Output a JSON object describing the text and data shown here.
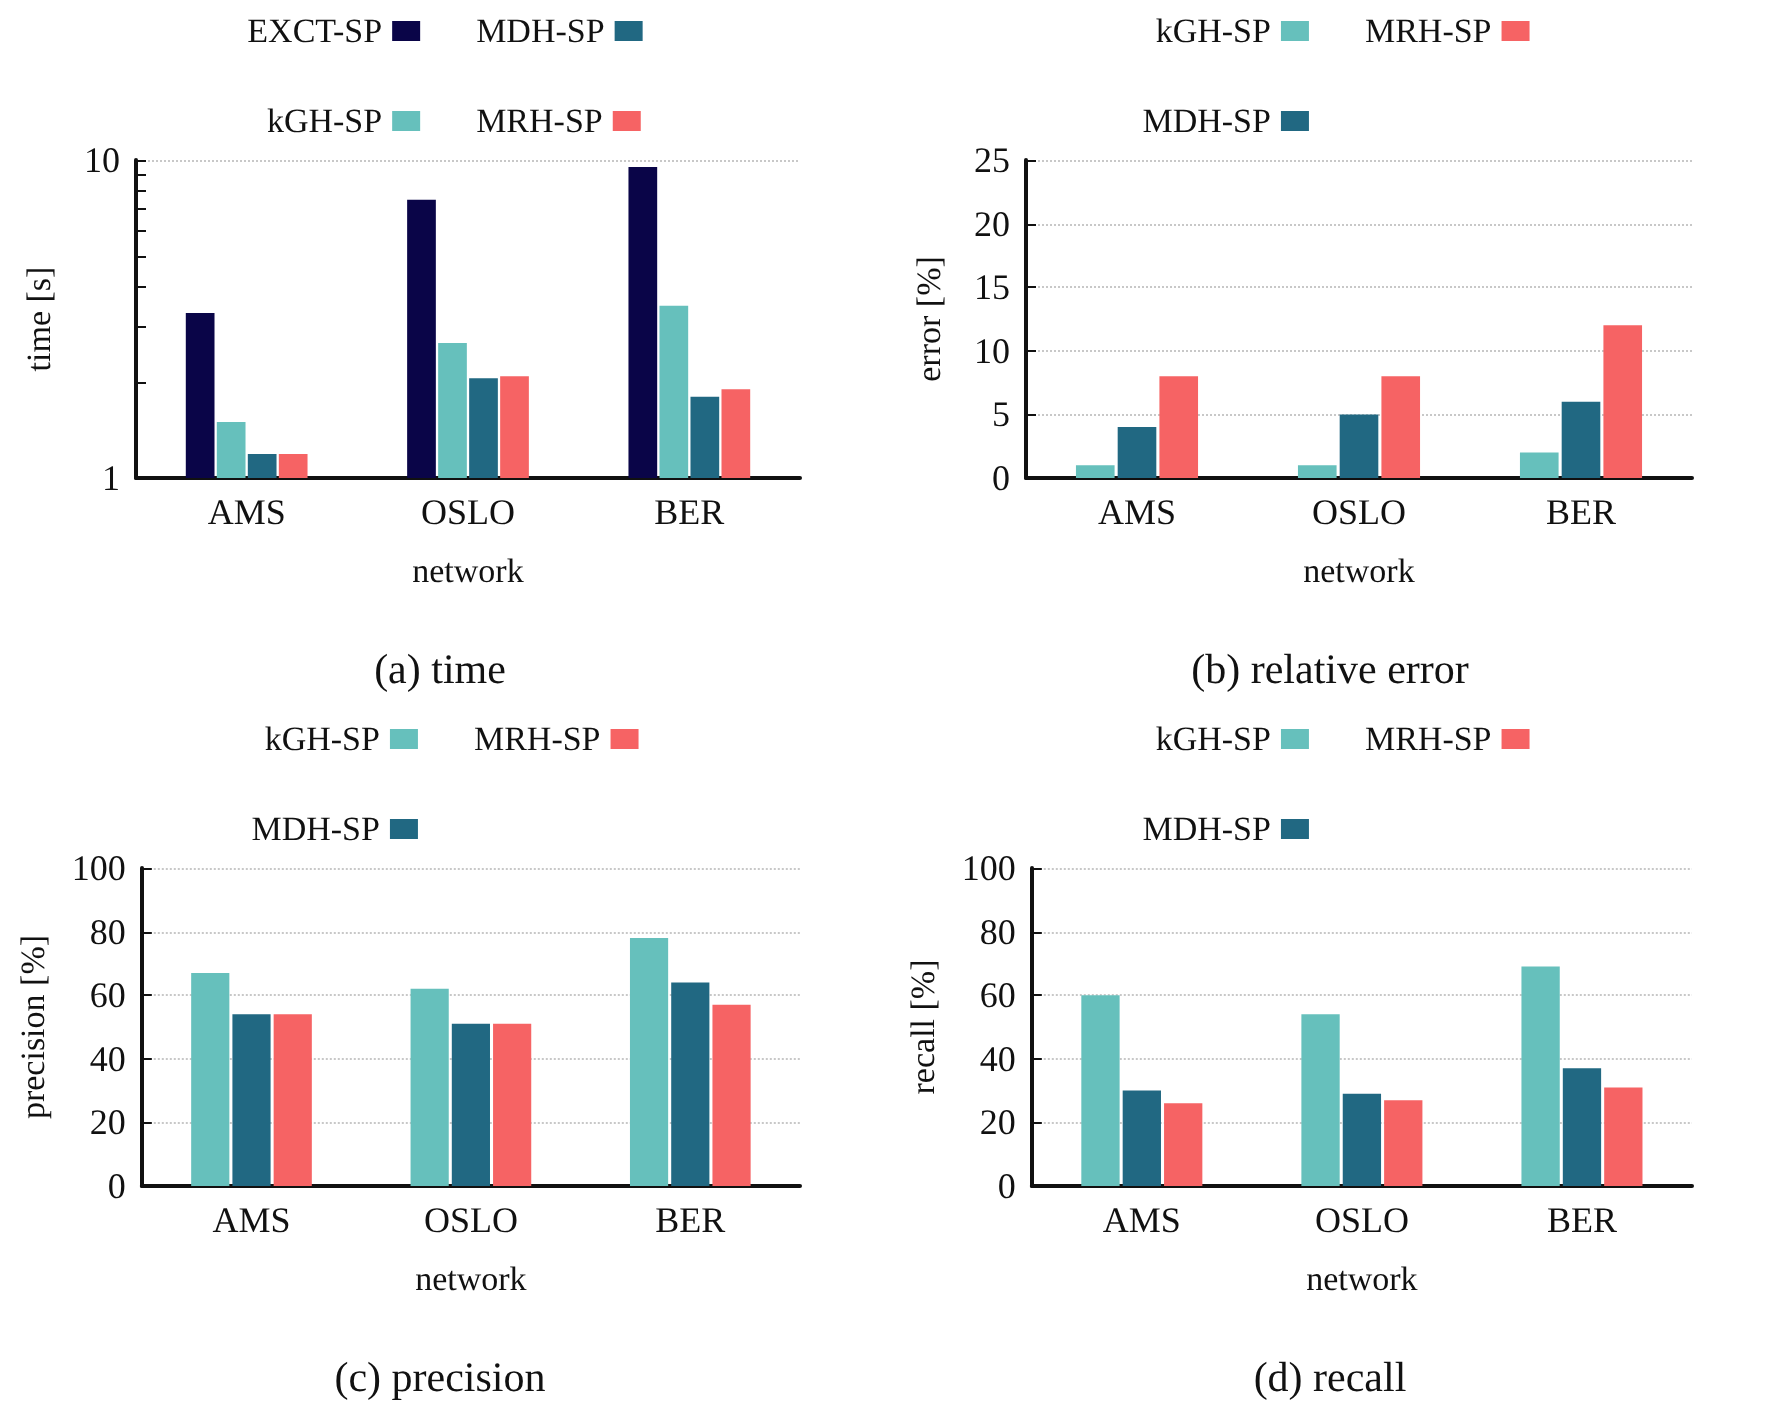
{
  "chart_data": [
    {
      "type": "bar",
      "title": "(a) time",
      "xlabel": "network",
      "ylabel": "time [s]",
      "categories": [
        "AMS",
        "OSLO",
        "BER"
      ],
      "log": "y",
      "ylim": [
        1,
        10
      ],
      "yticks": [
        1,
        {
          "value": 2,
          "label": null
        },
        {
          "value": 3,
          "label": null
        },
        {
          "value": 4,
          "label": null
        },
        {
          "value": 5,
          "label": null
        },
        {
          "value": 6,
          "label": null
        },
        {
          "value": 7,
          "label": null
        },
        {
          "value": 8,
          "label": null
        },
        {
          "value": 9,
          "label": null
        },
        10
      ],
      "grid": "y",
      "legend": "top",
      "series": [
        {
          "name": "EXCT-SP",
          "color": "#0a0548",
          "values": [
            3.3,
            7.5,
            9.5
          ]
        },
        {
          "name": "kGH-SP",
          "color": "#66c0bc",
          "values": [
            1.5,
            2.66,
            3.48
          ]
        },
        {
          "name": "MDH-SP",
          "color": "#216882",
          "values": [
            1.19,
            2.06,
            1.8
          ]
        },
        {
          "name": "MRH-SP",
          "color": "#f66364",
          "values": [
            1.19,
            2.09,
            1.9
          ]
        }
      ]
    },
    {
      "type": "bar",
      "title": "(b) relative error",
      "xlabel": "network",
      "ylabel": "error [%]",
      "categories": [
        "AMS",
        "OSLO",
        "BER"
      ],
      "ylim": [
        0,
        25
      ],
      "yticks": [
        0,
        5,
        10,
        15,
        20,
        25
      ],
      "grid": "y",
      "legend": "top",
      "series": [
        {
          "name": "kGH-SP",
          "color": "#66c0bc",
          "values": [
            1,
            1,
            2
          ]
        },
        {
          "name": "MDH-SP",
          "color": "#216882",
          "values": [
            4,
            5,
            6
          ]
        },
        {
          "name": "MRH-SP",
          "color": "#f66364",
          "values": [
            8,
            8,
            12
          ]
        }
      ]
    },
    {
      "type": "bar",
      "title": "(c) precision",
      "xlabel": "network",
      "ylabel": "precision [%]",
      "categories": [
        "AMS",
        "OSLO",
        "BER"
      ],
      "ylim": [
        0,
        100
      ],
      "yticks": [
        0,
        20,
        40,
        60,
        80,
        100
      ],
      "grid": "y",
      "legend": "top",
      "series": [
        {
          "name": "kGH-SP",
          "color": "#66c0bc",
          "values": [
            67,
            62,
            78
          ]
        },
        {
          "name": "MDH-SP",
          "color": "#216882",
          "values": [
            54,
            51,
            64
          ]
        },
        {
          "name": "MRH-SP",
          "color": "#f66364",
          "values": [
            54,
            51,
            57
          ]
        }
      ]
    },
    {
      "type": "bar",
      "title": "(d) recall",
      "xlabel": "network",
      "ylabel": "recall [%]",
      "categories": [
        "AMS",
        "OSLO",
        "BER"
      ],
      "ylim": [
        0,
        100
      ],
      "yticks": [
        0,
        20,
        40,
        60,
        80,
        100
      ],
      "grid": "y",
      "legend": "top",
      "series": [
        {
          "name": "kGH-SP",
          "color": "#66c0bc",
          "values": [
            60,
            54,
            69
          ]
        },
        {
          "name": "MDH-SP",
          "color": "#216882",
          "values": [
            30,
            29,
            37
          ]
        },
        {
          "name": "MRH-SP",
          "color": "#f66364",
          "values": [
            26,
            27,
            31
          ]
        }
      ]
    }
  ]
}
